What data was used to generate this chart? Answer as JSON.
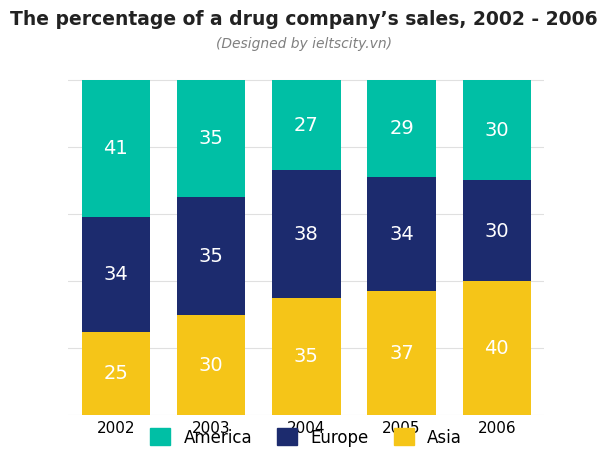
{
  "title": "The percentage of a drug company’s sales, 2002 - 2006",
  "subtitle": "(Designed by ieltscity.vn)",
  "years": [
    "2002",
    "2003",
    "2004",
    "2005",
    "2006"
  ],
  "asia": [
    25,
    30,
    35,
    37,
    40
  ],
  "europe": [
    34,
    35,
    38,
    34,
    30
  ],
  "america": [
    41,
    35,
    27,
    29,
    30
  ],
  "color_america": "#00BFA5",
  "color_europe": "#1C2B6E",
  "color_asia": "#F5C518",
  "bar_width": 0.72,
  "ylim": [
    0,
    105
  ],
  "label_fontsize": 14,
  "title_fontsize": 13.5,
  "subtitle_fontsize": 10,
  "legend_fontsize": 12,
  "tick_fontsize": 11,
  "background_color": "#FFFFFF",
  "grid_color": "#E0E0E0"
}
